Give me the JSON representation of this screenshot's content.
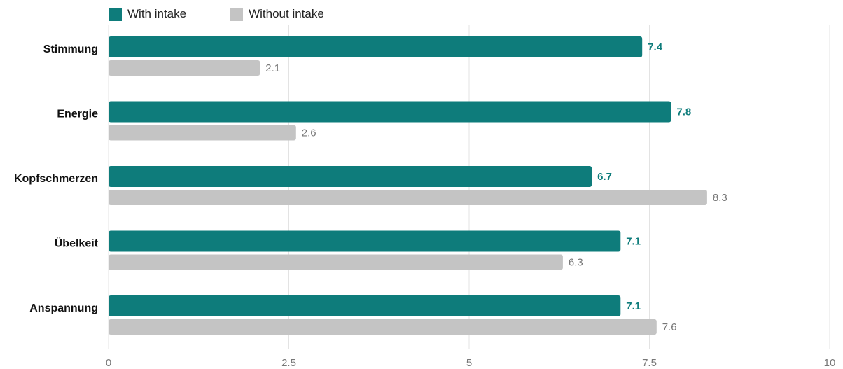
{
  "chart_data": {
    "type": "bar",
    "orientation": "horizontal",
    "categories": [
      "Stimmung",
      "Energie",
      "Kopfschmerzen",
      "Übelkeit",
      "Anspannung"
    ],
    "series": [
      {
        "name": "With intake",
        "values": [
          7.4,
          7.8,
          6.7,
          7.1,
          7.1
        ],
        "color": "#0e7c7b"
      },
      {
        "name": "Without intake",
        "values": [
          2.1,
          2.6,
          8.3,
          6.3,
          7.6
        ],
        "color": "#c4c4c4"
      }
    ],
    "xlim": [
      0,
      10
    ],
    "xticks": [
      0,
      2.5,
      5,
      7.5,
      10
    ],
    "xtick_labels": [
      "0",
      "2.5",
      "5",
      "7.5",
      "10"
    ],
    "grid": true,
    "legend_position": "top-left",
    "title": "",
    "xlabel": "",
    "ylabel": ""
  }
}
